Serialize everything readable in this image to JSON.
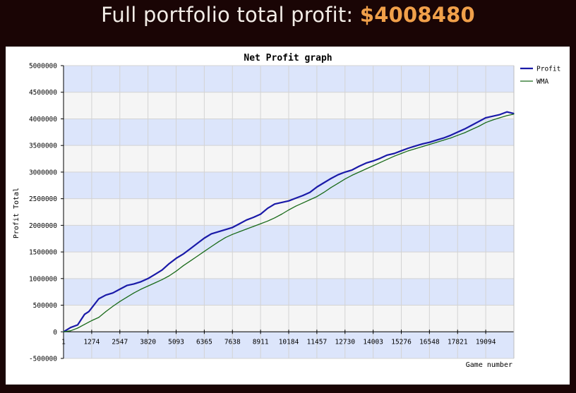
{
  "header": {
    "label": "Full portfolio total profit: ",
    "amount": "$4008480"
  },
  "chart_data": {
    "type": "line",
    "title": "Net Profit graph",
    "xlabel": "Game number",
    "ylabel": "Profit Total",
    "xlim": [
      0,
      20367
    ],
    "ylim": [
      -500000,
      5000000
    ],
    "x_ticks": [
      0,
      1274,
      2547,
      3820,
      5093,
      6365,
      7638,
      8911,
      10184,
      11457,
      12730,
      14003,
      15276,
      16548,
      17821,
      19094
    ],
    "x_tick_labels": [
      "1",
      "1274",
      "2547",
      "3820",
      "5093",
      "6365",
      "7638",
      "8911",
      "10184",
      "11457",
      "12730",
      "14003",
      "15276",
      "16548",
      "17821",
      "19094"
    ],
    "y_ticks": [
      -500000,
      0,
      500000,
      1000000,
      1500000,
      2000000,
      2500000,
      3000000,
      3500000,
      4000000,
      4500000,
      5000000
    ],
    "y_tick_labels": [
      "-500000",
      "0",
      "500000",
      "1000000",
      "1500000",
      "2000000",
      "2500000",
      "3000000",
      "3500000",
      "4000000",
      "4500000",
      "5000000"
    ],
    "grid": true,
    "legend_position": "right",
    "series": [
      {
        "name": "Profit",
        "color": "#1a1aa8",
        "x": [
          0,
          318,
          637,
          955,
          1147,
          1593,
          1911,
          2230,
          2548,
          2866,
          3184,
          3503,
          3821,
          4139,
          4457,
          4776,
          5094,
          5412,
          5730,
          6049,
          6367,
          6685,
          7003,
          7322,
          7640,
          7958,
          8276,
          8595,
          8913,
          9231,
          9549,
          9868,
          10186,
          10504,
          10822,
          11141,
          11459,
          11777,
          12095,
          12414,
          12732,
          13050,
          13368,
          13687,
          14005,
          14323,
          14641,
          14960,
          15278,
          15596,
          15914,
          16233,
          16551,
          16869,
          17187,
          17506,
          17824,
          18142,
          18460,
          18779,
          19097,
          19415,
          19733,
          20051,
          20367
        ],
        "y": [
          0,
          80000,
          130000,
          330000,
          380000,
          620000,
          690000,
          730000,
          800000,
          870000,
          900000,
          940000,
          1000000,
          1080000,
          1160000,
          1280000,
          1380000,
          1460000,
          1560000,
          1660000,
          1760000,
          1840000,
          1880000,
          1920000,
          1960000,
          2030000,
          2100000,
          2150000,
          2210000,
          2320000,
          2400000,
          2430000,
          2460000,
          2510000,
          2560000,
          2620000,
          2720000,
          2800000,
          2880000,
          2950000,
          3000000,
          3040000,
          3110000,
          3170000,
          3210000,
          3260000,
          3320000,
          3350000,
          3400000,
          3450000,
          3490000,
          3530000,
          3560000,
          3600000,
          3640000,
          3690000,
          3750000,
          3810000,
          3880000,
          3950000,
          4020000,
          4050000,
          4080000,
          4130000,
          4100000
        ]
      },
      {
        "name": "WMA",
        "color": "#1a6b1a",
        "x": [
          0,
          318,
          637,
          955,
          1274,
          1593,
          1911,
          2230,
          2548,
          2866,
          3184,
          3503,
          3821,
          4139,
          4457,
          4776,
          5094,
          5412,
          5730,
          6049,
          6367,
          6685,
          7003,
          7322,
          7640,
          7958,
          8276,
          8595,
          8913,
          9231,
          9549,
          9868,
          10186,
          10504,
          10822,
          11141,
          11459,
          11777,
          12095,
          12414,
          12732,
          13050,
          13368,
          13687,
          14005,
          14323,
          14641,
          14960,
          15278,
          15596,
          15914,
          16233,
          16551,
          16869,
          17187,
          17506,
          17824,
          18142,
          18460,
          18779,
          19097,
          19415,
          19733,
          20051,
          20367
        ],
        "y": [
          0,
          20000,
          70000,
          140000,
          210000,
          270000,
          380000,
          480000,
          570000,
          650000,
          730000,
          800000,
          860000,
          920000,
          980000,
          1050000,
          1140000,
          1240000,
          1330000,
          1420000,
          1510000,
          1600000,
          1690000,
          1770000,
          1830000,
          1880000,
          1930000,
          1980000,
          2030000,
          2080000,
          2140000,
          2210000,
          2290000,
          2360000,
          2420000,
          2480000,
          2540000,
          2620000,
          2710000,
          2790000,
          2870000,
          2940000,
          3000000,
          3060000,
          3120000,
          3180000,
          3240000,
          3300000,
          3350000,
          3400000,
          3440000,
          3480000,
          3520000,
          3560000,
          3600000,
          3640000,
          3690000,
          3740000,
          3800000,
          3860000,
          3930000,
          3980000,
          4020000,
          4060000,
          4090000
        ]
      }
    ]
  }
}
